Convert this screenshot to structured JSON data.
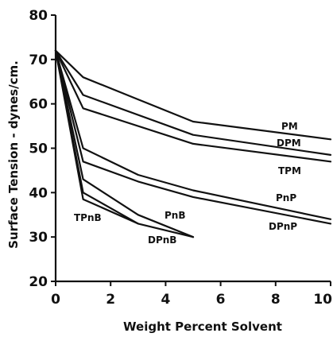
{
  "chart_data": {
    "type": "line",
    "title": "",
    "xlabel": "Weight Percent Solvent",
    "ylabel": "Surface Tension - dynes/cm.",
    "xlim": [
      0,
      10
    ],
    "ylim": [
      20,
      80
    ],
    "x_ticks": [
      0,
      2,
      4,
      6,
      8,
      10
    ],
    "y_ticks": [
      20,
      30,
      40,
      50,
      60,
      70,
      80
    ],
    "x_tick_labels": [
      "0",
      "2",
      "4",
      "6",
      "8",
      "10"
    ],
    "y_tick_labels": [
      "20",
      "30",
      "40",
      "50",
      "60",
      "70",
      "80"
    ],
    "grid": false,
    "legend": "none",
    "series": [
      {
        "name": "PM",
        "x": [
          0,
          1,
          3,
          5,
          10
        ],
        "y": [
          72,
          66,
          61,
          56,
          52
        ]
      },
      {
        "name": "DPM",
        "x": [
          0,
          1,
          5,
          10
        ],
        "y": [
          72,
          62,
          53,
          48.5
        ]
      },
      {
        "name": "TPM",
        "x": [
          0,
          1,
          5,
          10
        ],
        "y": [
          72,
          59,
          51,
          47
        ]
      },
      {
        "name": "PnP",
        "x": [
          0,
          1,
          3,
          5,
          10
        ],
        "y": [
          72,
          50,
          44,
          40.5,
          34
        ]
      },
      {
        "name": "DPnP",
        "x": [
          0,
          1,
          3,
          5,
          10
        ],
        "y": [
          72,
          47,
          42.5,
          39,
          33
        ]
      },
      {
        "name": "PnB",
        "x": [
          0,
          1,
          3,
          5
        ],
        "y": [
          72,
          43,
          35,
          30
        ]
      },
      {
        "name": "DPnB",
        "x": [
          0,
          1,
          3,
          5
        ],
        "y": [
          72,
          40,
          33,
          30
        ]
      },
      {
        "name": "TPnB",
        "x": [
          0,
          1,
          3
        ],
        "y": [
          72,
          38.5,
          33
        ]
      }
    ]
  }
}
